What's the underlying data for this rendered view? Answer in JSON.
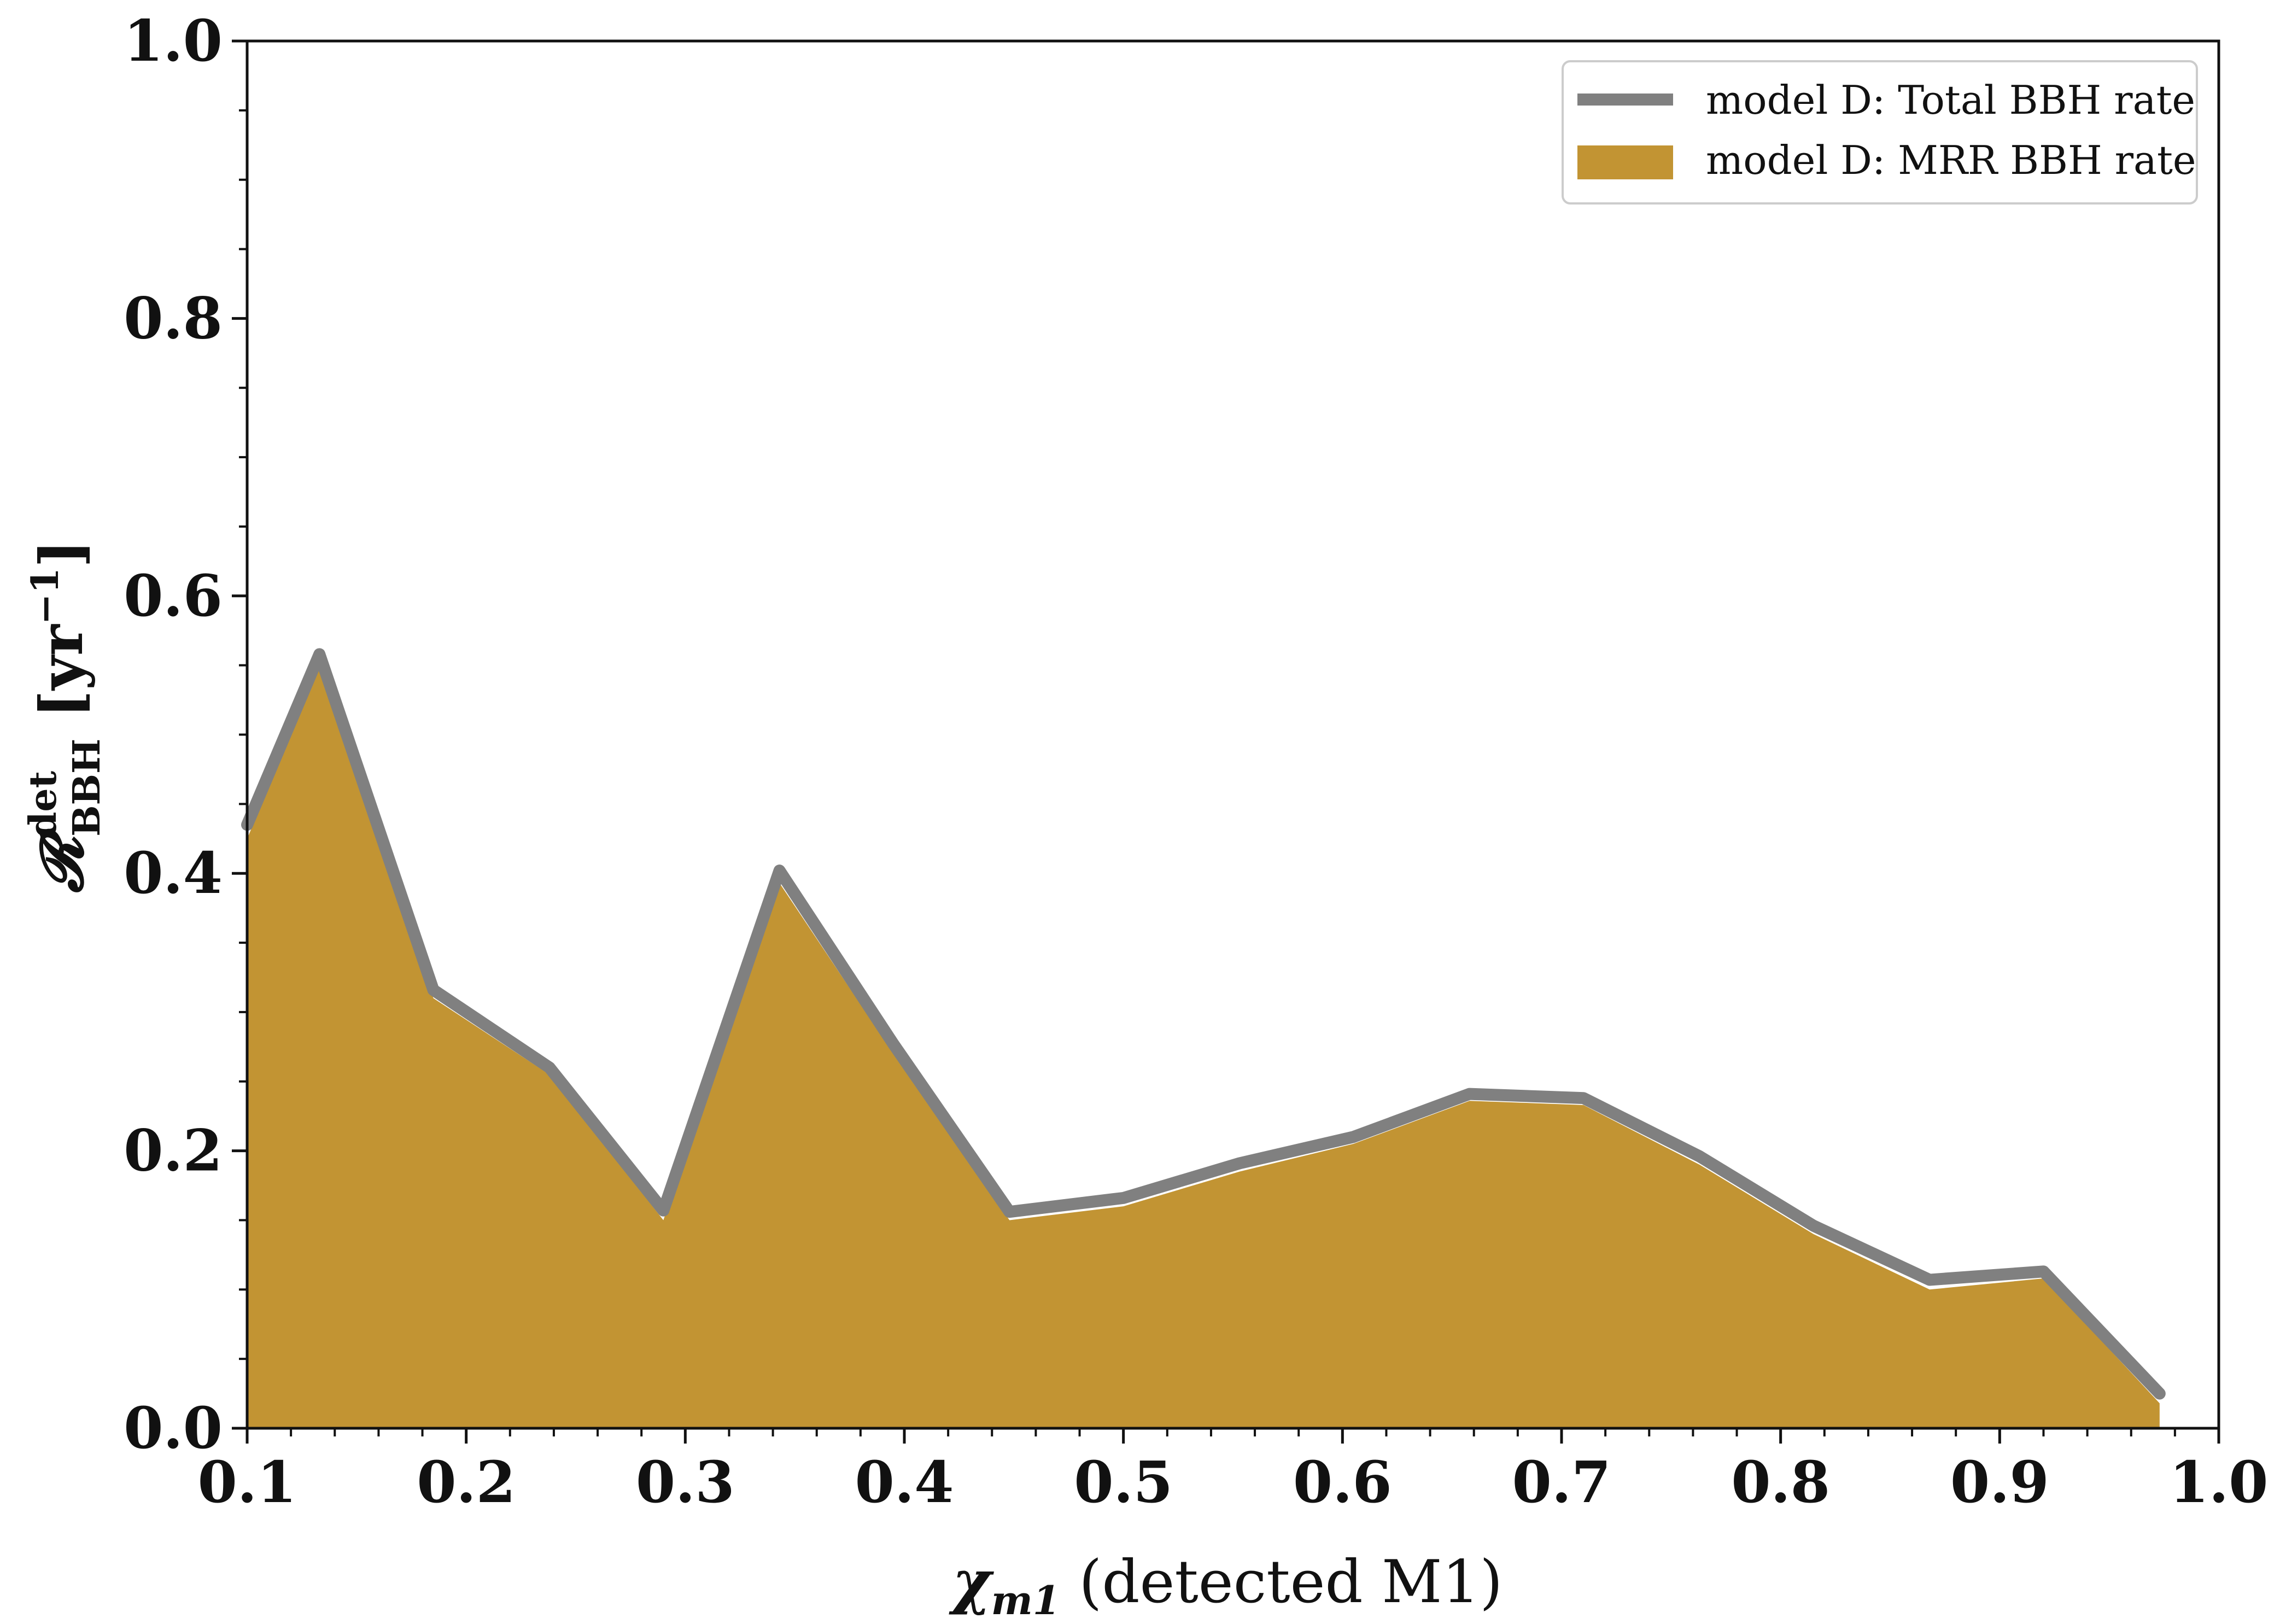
{
  "chart_data": {
    "type": "area",
    "x": [
      0.1,
      0.133,
      0.185,
      0.238,
      0.29,
      0.343,
      0.395,
      0.448,
      0.5,
      0.553,
      0.605,
      0.658,
      0.71,
      0.763,
      0.815,
      0.868,
      0.92,
      0.973
    ],
    "series": [
      {
        "name": "model D: Total BBH rate",
        "kind": "line",
        "color": "#808080",
        "values": [
          0.435,
          0.558,
          0.316,
          0.26,
          0.157,
          0.402,
          0.277,
          0.156,
          0.166,
          0.191,
          0.21,
          0.241,
          0.238,
          0.196,
          0.146,
          0.107,
          0.113,
          0.025
        ]
      },
      {
        "name": "model D: MRR BBH rate",
        "kind": "fill",
        "color": "#c29433",
        "values": [
          0.425,
          0.548,
          0.31,
          0.255,
          0.15,
          0.393,
          0.27,
          0.15,
          0.16,
          0.185,
          0.205,
          0.236,
          0.233,
          0.19,
          0.14,
          0.1,
          0.108,
          0.018
        ]
      }
    ],
    "xlim": [
      0.1,
      1.0
    ],
    "ylim": [
      0.0,
      1.0
    ],
    "xticks": [
      "0.1",
      "0.2",
      "0.3",
      "0.4",
      "0.5",
      "0.6",
      "0.7",
      "0.8",
      "0.9",
      "1.0"
    ],
    "yticks": [
      "0.0",
      "0.2",
      "0.4",
      "0.6",
      "0.8",
      "1.0"
    ],
    "xlabel_symbol": "χ",
    "xlabel_subscript": "m1",
    "xlabel_text": " (detected M1)",
    "ylabel_symbol": "𝓡",
    "ylabel_superscript": "det",
    "ylabel_subscript": "BBH",
    "ylabel_unit": " [yr",
    "ylabel_unit_exp": "−1",
    "ylabel_unit_close": "]",
    "legend_position": "upper right",
    "grid": false
  }
}
